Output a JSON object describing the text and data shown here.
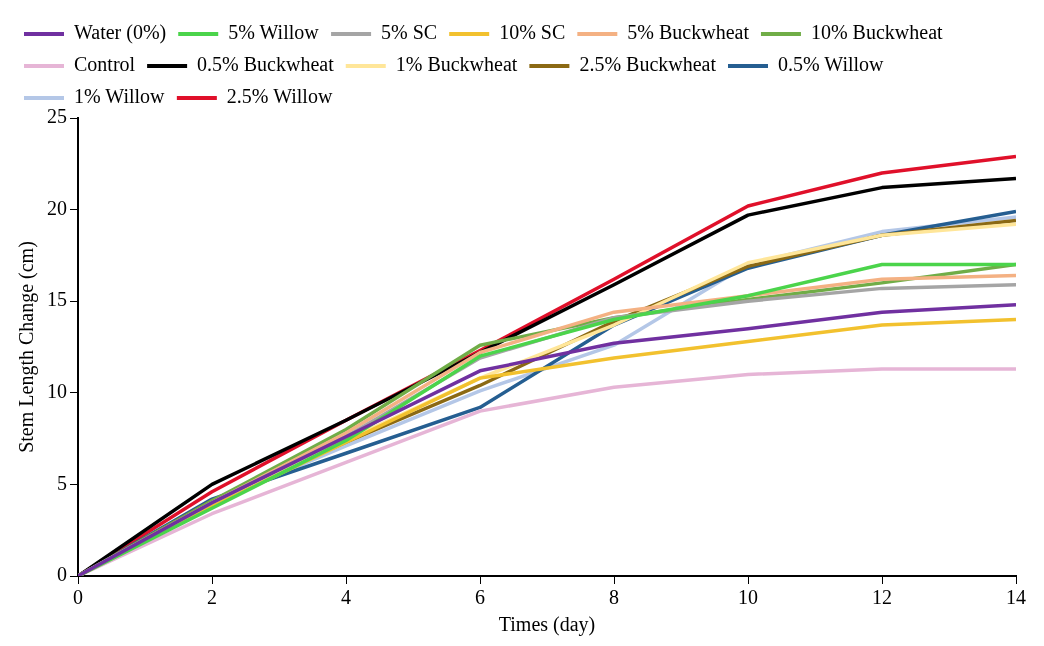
{
  "chart_data": {
    "type": "line",
    "xlabel": "Times (day)",
    "ylabel": "Stem Length Change (cm)",
    "x": [
      0,
      2,
      4,
      6,
      8,
      10,
      12,
      14
    ],
    "xlim": [
      0,
      14
    ],
    "xticks": [
      0,
      2,
      4,
      6,
      8,
      10,
      12,
      14
    ],
    "ylim": [
      0,
      25
    ],
    "yticks": [
      0,
      5,
      10,
      15,
      20,
      25
    ],
    "grid": false,
    "legend": "top left",
    "marker": "none",
    "line_style": "solid",
    "series": [
      {
        "name": "Water (0%)",
        "color": "#7030a0",
        "values": [
          0,
          4.0,
          7.6,
          11.2,
          12.7,
          13.5,
          14.4,
          14.8
        ]
      },
      {
        "name": "5% Willow",
        "color": "#4bd44b",
        "values": [
          0,
          3.7,
          7.4,
          12.0,
          14.0,
          15.3,
          17.0,
          17.0
        ]
      },
      {
        "name": "5% SC",
        "color": "#a5a5a5",
        "values": [
          0,
          4.0,
          7.6,
          11.9,
          14.1,
          15.0,
          15.7,
          15.9
        ]
      },
      {
        "name": "10% SC",
        "color": "#f2c12e",
        "values": [
          0,
          3.8,
          7.3,
          10.8,
          11.9,
          12.8,
          13.7,
          14.0
        ]
      },
      {
        "name": "5% Buckwheat",
        "color": "#f4b183",
        "values": [
          0,
          4.0,
          7.8,
          12.2,
          14.4,
          15.3,
          16.2,
          16.4
        ]
      },
      {
        "name": "10% Buckwheat",
        "color": "#70ad47",
        "values": [
          0,
          4.1,
          8.0,
          12.6,
          14.1,
          15.1,
          16.0,
          17.0
        ]
      },
      {
        "name": "Control",
        "color": "#e6b5d6",
        "values": [
          0,
          3.4,
          6.2,
          9.0,
          10.3,
          11.0,
          11.3,
          11.3
        ]
      },
      {
        "name": "0.5% Buckwheat",
        "color": "#000000",
        "values": [
          0,
          5.0,
          8.5,
          12.2,
          15.9,
          19.7,
          21.2,
          21.7
        ]
      },
      {
        "name": "1% Buckwheat",
        "color": "#ffe699",
        "values": [
          0,
          4.0,
          7.4,
          10.8,
          13.7,
          17.1,
          18.6,
          19.2
        ]
      },
      {
        "name": "2.5% Buckwheat",
        "color": "#8b6914",
        "values": [
          0,
          4.1,
          7.3,
          10.4,
          13.9,
          16.9,
          18.6,
          19.4
        ]
      },
      {
        "name": "0.5% Willow",
        "color": "#255e91",
        "values": [
          0,
          4.2,
          6.7,
          9.2,
          13.7,
          16.8,
          18.6,
          19.9
        ]
      },
      {
        "name": "1% Willow",
        "color": "#b4c7e7",
        "values": [
          0,
          4.0,
          7.1,
          10.1,
          12.6,
          17.0,
          18.8,
          19.6
        ]
      },
      {
        "name": "2.5% Willow",
        "color": "#e0102a",
        "values": [
          0,
          4.6,
          8.5,
          12.3,
          16.2,
          20.2,
          22.0,
          22.9
        ]
      }
    ]
  }
}
